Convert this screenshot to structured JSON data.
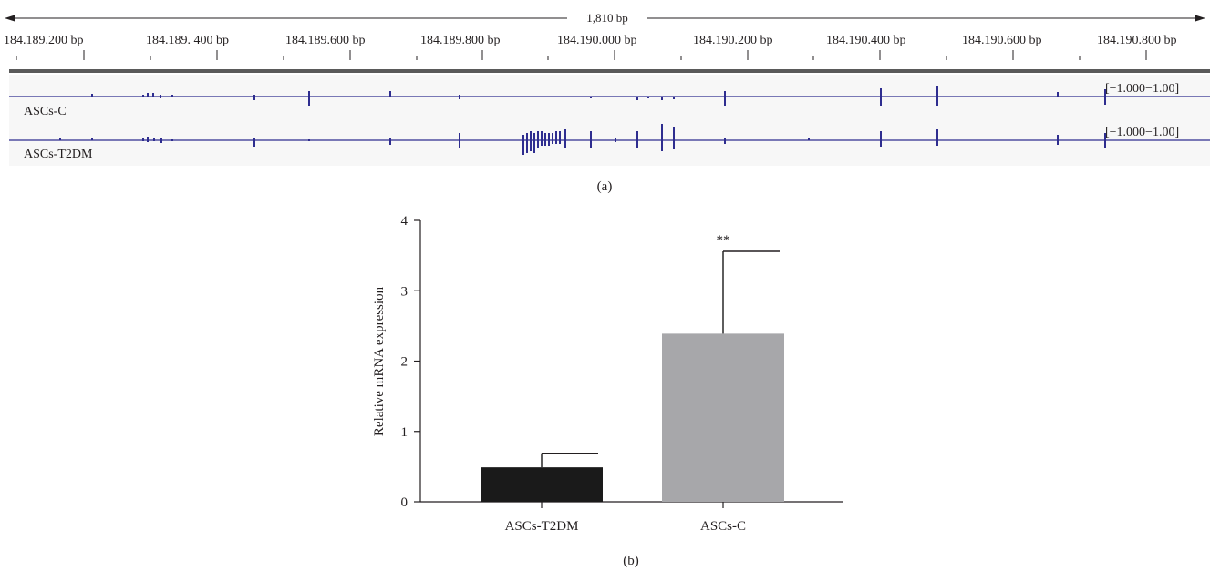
{
  "panel_a": {
    "label": "(a)",
    "span_label": "1,810 bp",
    "ruler_labels": [
      "184.189.200 bp",
      "184.189. 400 bp",
      "184.189.600 bp",
      "184.189.800 bp",
      "184.190.000 bp",
      "184.190.200 bp",
      "184.190.400 bp",
      "184.190.600 bp",
      "184.190.800 bp"
    ],
    "track_color": "#2e2d8f",
    "tracks": [
      {
        "name": "ASCs-C",
        "range_label": "[−1.000−1.00]"
      },
      {
        "name": "ASCs-T2DM",
        "range_label": "[−1.000−1.00]"
      }
    ]
  },
  "panel_b": {
    "label": "(b)"
  },
  "chart_data": {
    "type": "bar",
    "categories": [
      "ASCs-T2DM",
      "ASCs-C"
    ],
    "values": [
      0.49,
      2.39
    ],
    "error_upper": [
      0.69,
      3.56
    ],
    "bar_colors": [
      "#1a1a1a",
      "#a7a7aa"
    ],
    "ylabel": "Relative mRNA expression",
    "xlabel": "",
    "ylim": [
      0,
      4
    ],
    "yticks": [
      "0",
      "1",
      "2",
      "3",
      "4"
    ],
    "annotations": [
      {
        "category": "ASCs-C",
        "text": "**"
      }
    ],
    "grid": false
  }
}
